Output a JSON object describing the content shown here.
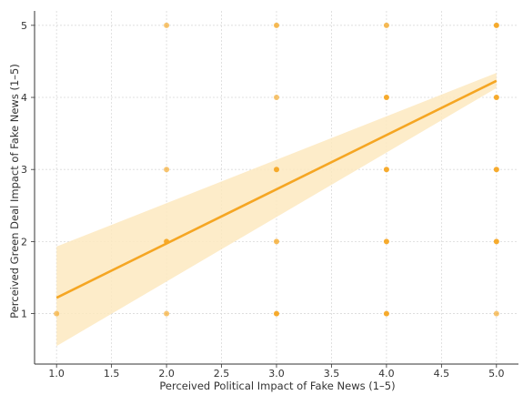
{
  "chart_data": {
    "type": "scatter",
    "title": "",
    "xlabel": "Perceived Political Impact of Fake News (1–5)",
    "ylabel": "Perceived Green Deal Impact of Fake News (1–5)",
    "xlim": [
      0.8,
      5.2
    ],
    "ylim": [
      0.3,
      5.2
    ],
    "x_ticks": [
      "1.0",
      "1.5",
      "2.0",
      "2.5",
      "3.0",
      "3.5",
      "4.0",
      "4.5",
      "5.0"
    ],
    "y_ticks": [
      "1",
      "2",
      "3",
      "4",
      "5"
    ],
    "grid": true,
    "legend": "none",
    "points": [
      {
        "x": 1,
        "y": 1,
        "weight": 0.5
      },
      {
        "x": 2,
        "y": 1,
        "weight": 0.5
      },
      {
        "x": 2,
        "y": 2,
        "weight": 1
      },
      {
        "x": 2,
        "y": 3,
        "weight": 0.5
      },
      {
        "x": 2,
        "y": 5,
        "weight": 0.5
      },
      {
        "x": 3,
        "y": 1,
        "weight": 1
      },
      {
        "x": 3,
        "y": 2,
        "weight": 0.7
      },
      {
        "x": 3,
        "y": 3,
        "weight": 1
      },
      {
        "x": 3,
        "y": 4,
        "weight": 0.5
      },
      {
        "x": 3,
        "y": 5,
        "weight": 0.7
      },
      {
        "x": 4,
        "y": 1,
        "weight": 1
      },
      {
        "x": 4,
        "y": 2,
        "weight": 1
      },
      {
        "x": 4,
        "y": 3,
        "weight": 1
      },
      {
        "x": 4,
        "y": 4,
        "weight": 1
      },
      {
        "x": 4,
        "y": 5,
        "weight": 0.7
      },
      {
        "x": 5,
        "y": 1,
        "weight": 0.5
      },
      {
        "x": 5,
        "y": 2,
        "weight": 1
      },
      {
        "x": 5,
        "y": 3,
        "weight": 1
      },
      {
        "x": 5,
        "y": 4,
        "weight": 1
      },
      {
        "x": 5,
        "y": 5,
        "weight": 1
      }
    ],
    "regression": {
      "x": [
        1.0,
        5.0
      ],
      "y": [
        1.22,
        4.23
      ],
      "ci_lower": [
        0.55,
        4.13
      ],
      "ci_upper": [
        1.93,
        4.34
      ]
    },
    "colors": {
      "point": "#f5a623",
      "line": "#f5a623",
      "band": "#fde9bf",
      "grid": "#d9d9d9",
      "axis": "#333333"
    }
  }
}
